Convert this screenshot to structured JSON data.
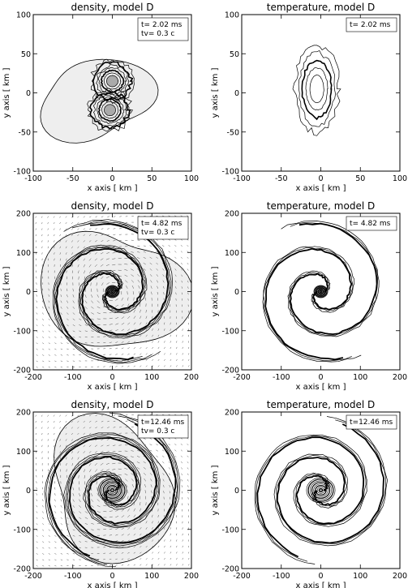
{
  "chart_data": [
    {
      "type": "contour",
      "title": "density, model D",
      "xlabel": "x axis [ km ]",
      "ylabel": "y axis [ km ]",
      "xlim": [
        -100,
        100
      ],
      "ylim": [
        -100,
        100
      ],
      "xticks": [
        -100,
        -50,
        0,
        50,
        100
      ],
      "yticks": [
        -100,
        -50,
        0,
        50,
        100
      ],
      "legend": [
        "t= 2.02 ms",
        "tv= 0.3 c"
      ],
      "velocity_arrows": false,
      "centers": [
        [
          0,
          15
        ],
        [
          -3,
          -22
        ]
      ]
    },
    {
      "type": "contour",
      "title": "temperature, model D",
      "xlabel": "x axis [ km ]",
      "ylabel": "y axis [ km ]",
      "xlim": [
        -100,
        100
      ],
      "ylim": [
        -100,
        100
      ],
      "xticks": [
        -100,
        -50,
        0,
        50,
        100
      ],
      "yticks": [
        -100,
        -50,
        0,
        50,
        100
      ],
      "legend": [
        "t= 2.02 ms"
      ],
      "velocity_arrows": false,
      "centers": [
        [
          -5,
          5
        ]
      ]
    },
    {
      "type": "contour",
      "title": "density, model D",
      "xlabel": "x axis [ km ]",
      "ylabel": "y axis [ km ]",
      "xlim": [
        -200,
        200
      ],
      "ylim": [
        -200,
        200
      ],
      "xticks": [
        -200,
        -100,
        0,
        100,
        200
      ],
      "yticks": [
        -200,
        -100,
        0,
        100,
        200
      ],
      "legend": [
        "t= 4.82 ms",
        "tv= 0.3 c"
      ],
      "velocity_arrows": true,
      "centers": [
        [
          0,
          0
        ]
      ]
    },
    {
      "type": "contour",
      "title": "temperature, model D",
      "xlabel": "x axis [ km ]",
      "ylabel": "y axis [ km ]",
      "xlim": [
        -200,
        200
      ],
      "ylim": [
        -200,
        200
      ],
      "xticks": [
        -200,
        -100,
        0,
        100,
        200
      ],
      "yticks": [
        -200,
        -100,
        0,
        100,
        200
      ],
      "legend": [
        "t= 4.82 ms"
      ],
      "velocity_arrows": false,
      "centers": [
        [
          0,
          0
        ]
      ]
    },
    {
      "type": "contour",
      "title": "density, model D",
      "xlabel": "x axis [ km ]",
      "ylabel": "y axis [ km ]",
      "xlim": [
        -200,
        200
      ],
      "ylim": [
        -200,
        200
      ],
      "xticks": [
        -200,
        -100,
        0,
        100,
        200
      ],
      "yticks": [
        -200,
        -100,
        0,
        100,
        200
      ],
      "legend": [
        "t=12.46 ms",
        "tv= 0.3 c"
      ],
      "velocity_arrows": true,
      "centers": [
        [
          0,
          0
        ]
      ]
    },
    {
      "type": "contour",
      "title": "temperature, model D",
      "xlabel": "x axis [ km ]",
      "ylabel": "y axis [ km ]",
      "xlim": [
        -200,
        200
      ],
      "ylim": [
        -200,
        200
      ],
      "xticks": [
        -200,
        -100,
        0,
        100,
        200
      ],
      "yticks": [
        -200,
        -100,
        0,
        100,
        200
      ],
      "legend": [
        "t=12.46 ms"
      ],
      "velocity_arrows": false,
      "centers": [
        [
          0,
          0
        ]
      ]
    }
  ]
}
